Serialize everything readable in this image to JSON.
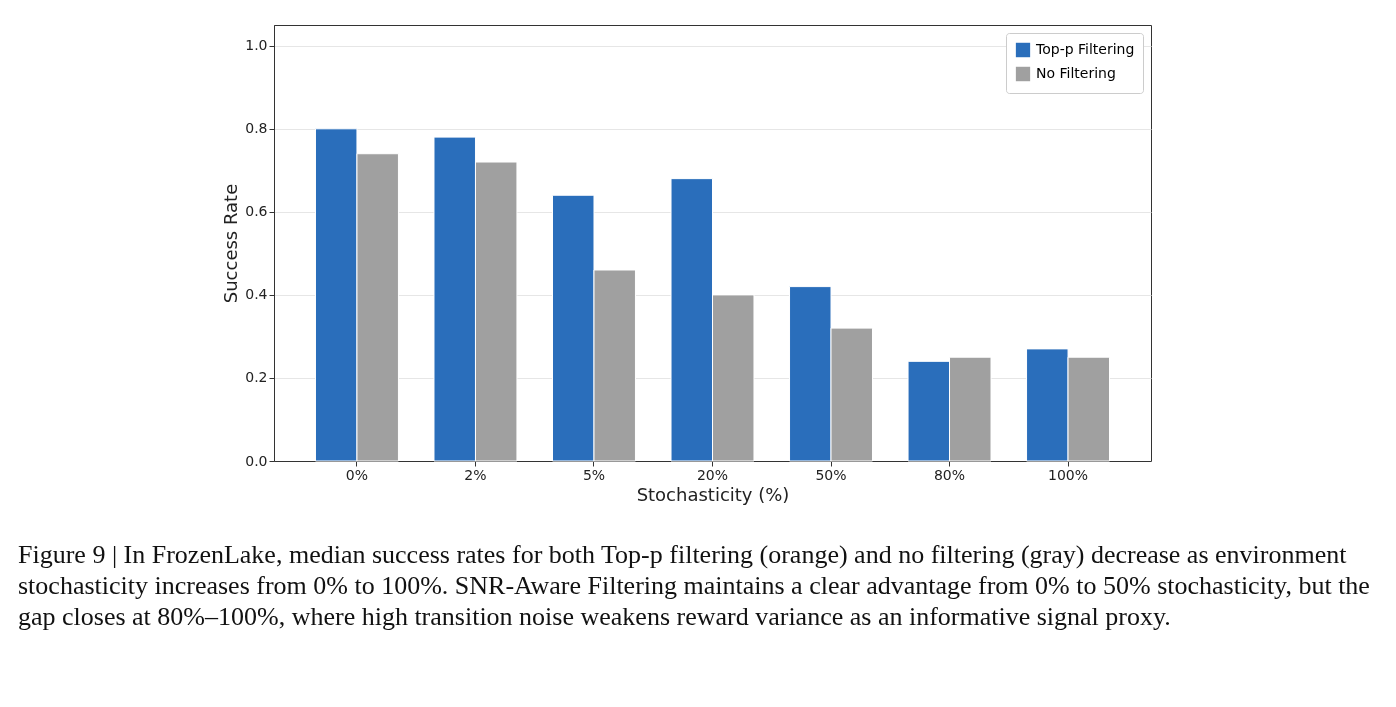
{
  "chart_data": {
    "type": "bar",
    "xlabel": "Stochasticity (%)",
    "ylabel": "Success Rate",
    "categories": [
      "0%",
      "2%",
      "5%",
      "20%",
      "50%",
      "80%",
      "100%"
    ],
    "series": [
      {
        "name": "Top-p Filtering",
        "color": "#2a6ebb",
        "values": [
          0.8,
          0.78,
          0.64,
          0.68,
          0.42,
          0.24,
          0.27
        ]
      },
      {
        "name": "No Filtering",
        "color": "#a0a0a0",
        "values": [
          0.74,
          0.72,
          0.46,
          0.4,
          0.32,
          0.25,
          0.25
        ]
      }
    ],
    "ylim": [
      0,
      1.05
    ],
    "yticks": [
      {
        "value": 0,
        "label": "0.0"
      },
      0.2,
      0.4,
      0.6,
      0.8,
      {
        "value": 1,
        "label": "1.0"
      }
    ],
    "grid": "y",
    "legend": "top right",
    "annotations": [
      "Figure 9 | In FrozenLake, median success rates for both Top-p filtering (orange) and no filtering (gray) decrease as environment stochasticity increases from 0% to 100%. SNR-Aware Filtering maintains a clear advantage from 0% to 50% stochasticity, but the gap closes at 80%–100%, where high transition noise weakens reward variance as an informative signal proxy."
    ]
  }
}
